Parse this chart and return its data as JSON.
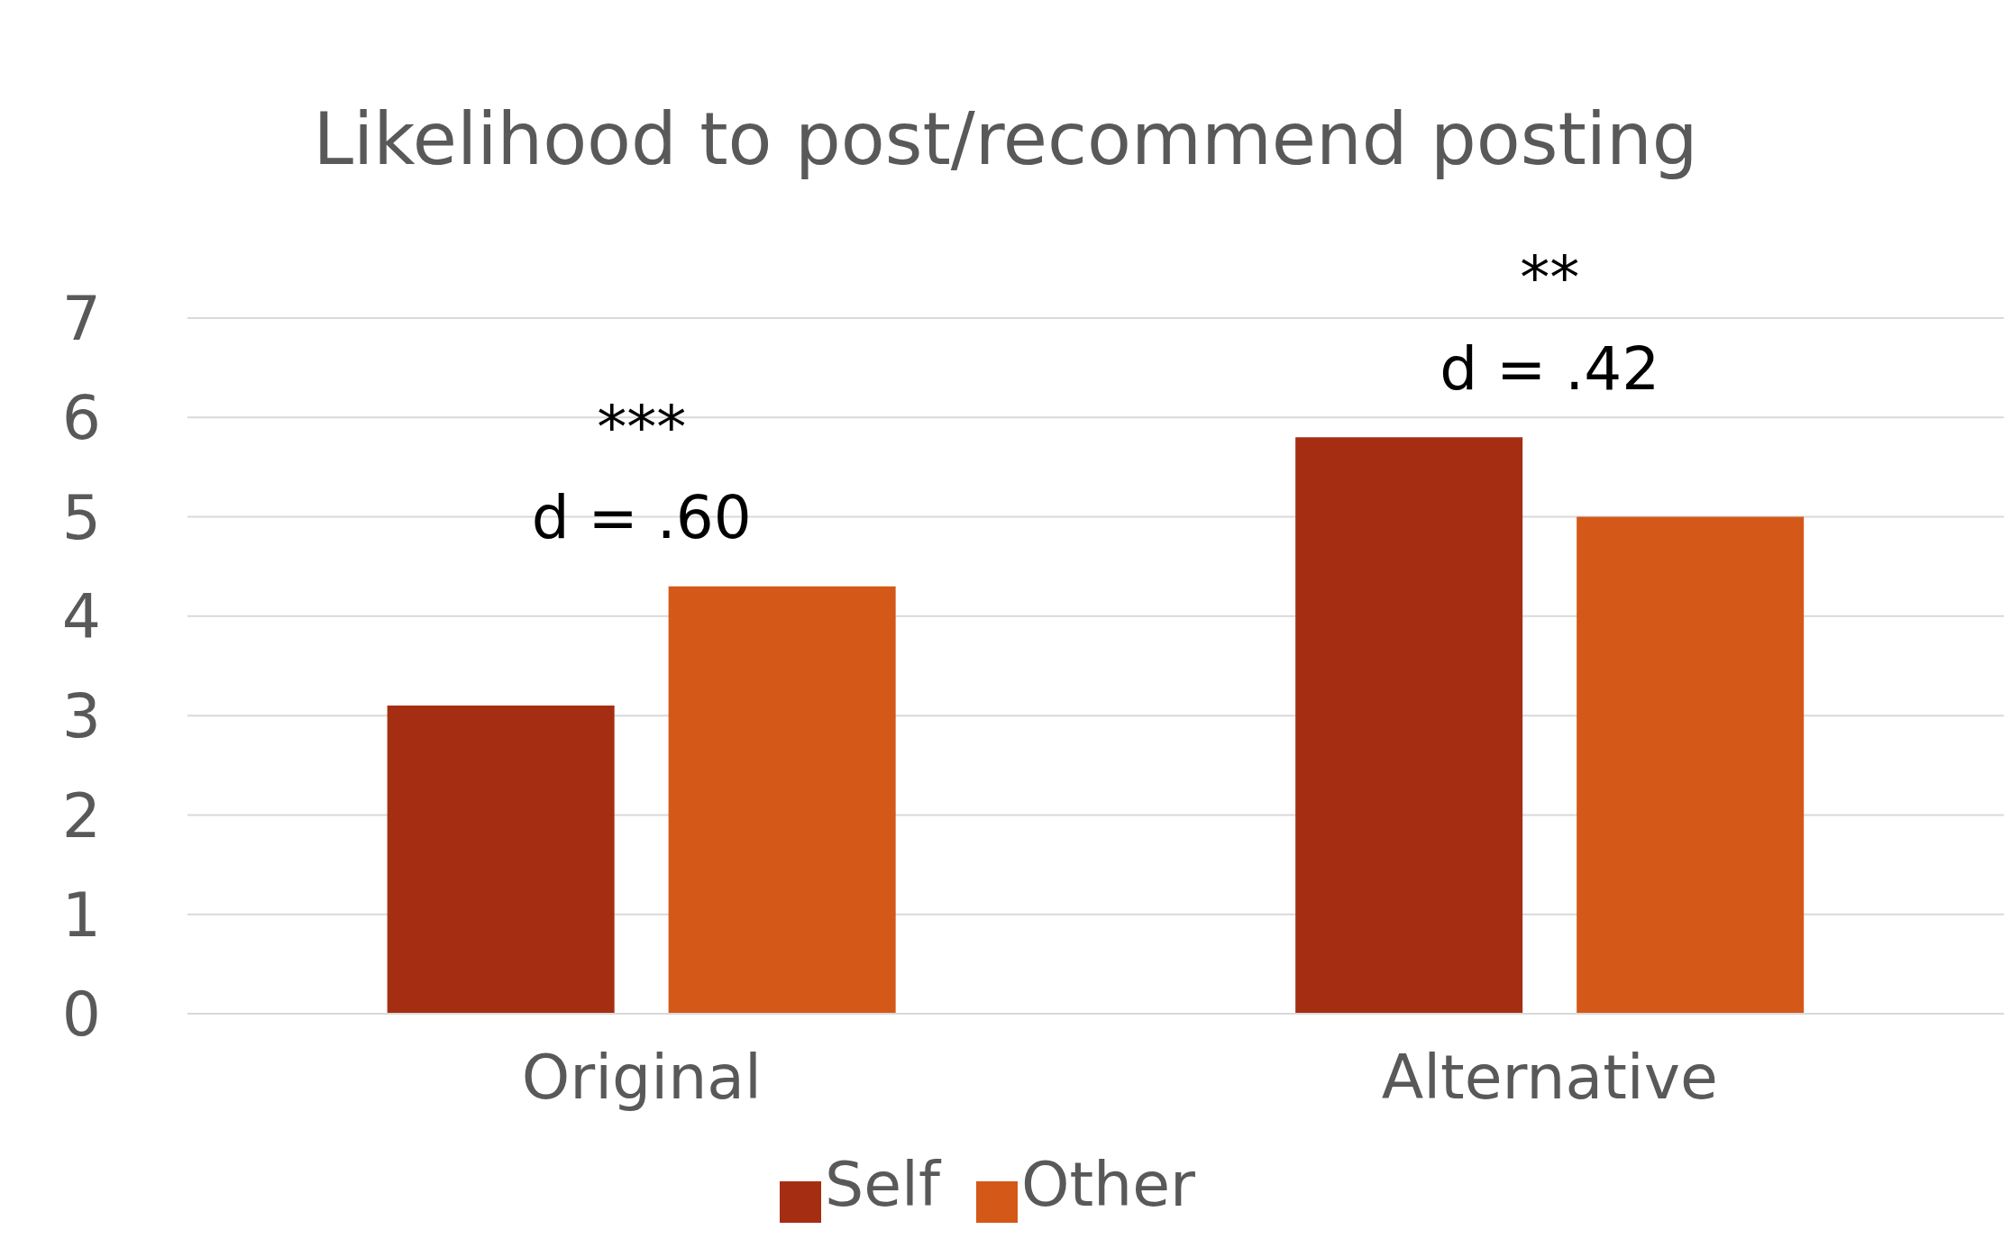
{
  "chart_data": {
    "type": "bar",
    "title": "Likelihood to post/recommend posting",
    "categories": [
      "Original",
      "Alternative"
    ],
    "series": [
      {
        "name": "Self",
        "color": "#a52e12",
        "values": [
          3.1,
          5.8
        ]
      },
      {
        "name": "Other",
        "color": "#d45818",
        "values": [
          4.3,
          5.0
        ]
      }
    ],
    "ylim": [
      0,
      7
    ],
    "yticks": [
      0,
      1,
      2,
      3,
      4,
      5,
      6,
      7
    ],
    "grid": "y",
    "legend": "bottom",
    "annotations": [
      "d = .60",
      "***",
      "d = .42",
      "**"
    ]
  }
}
